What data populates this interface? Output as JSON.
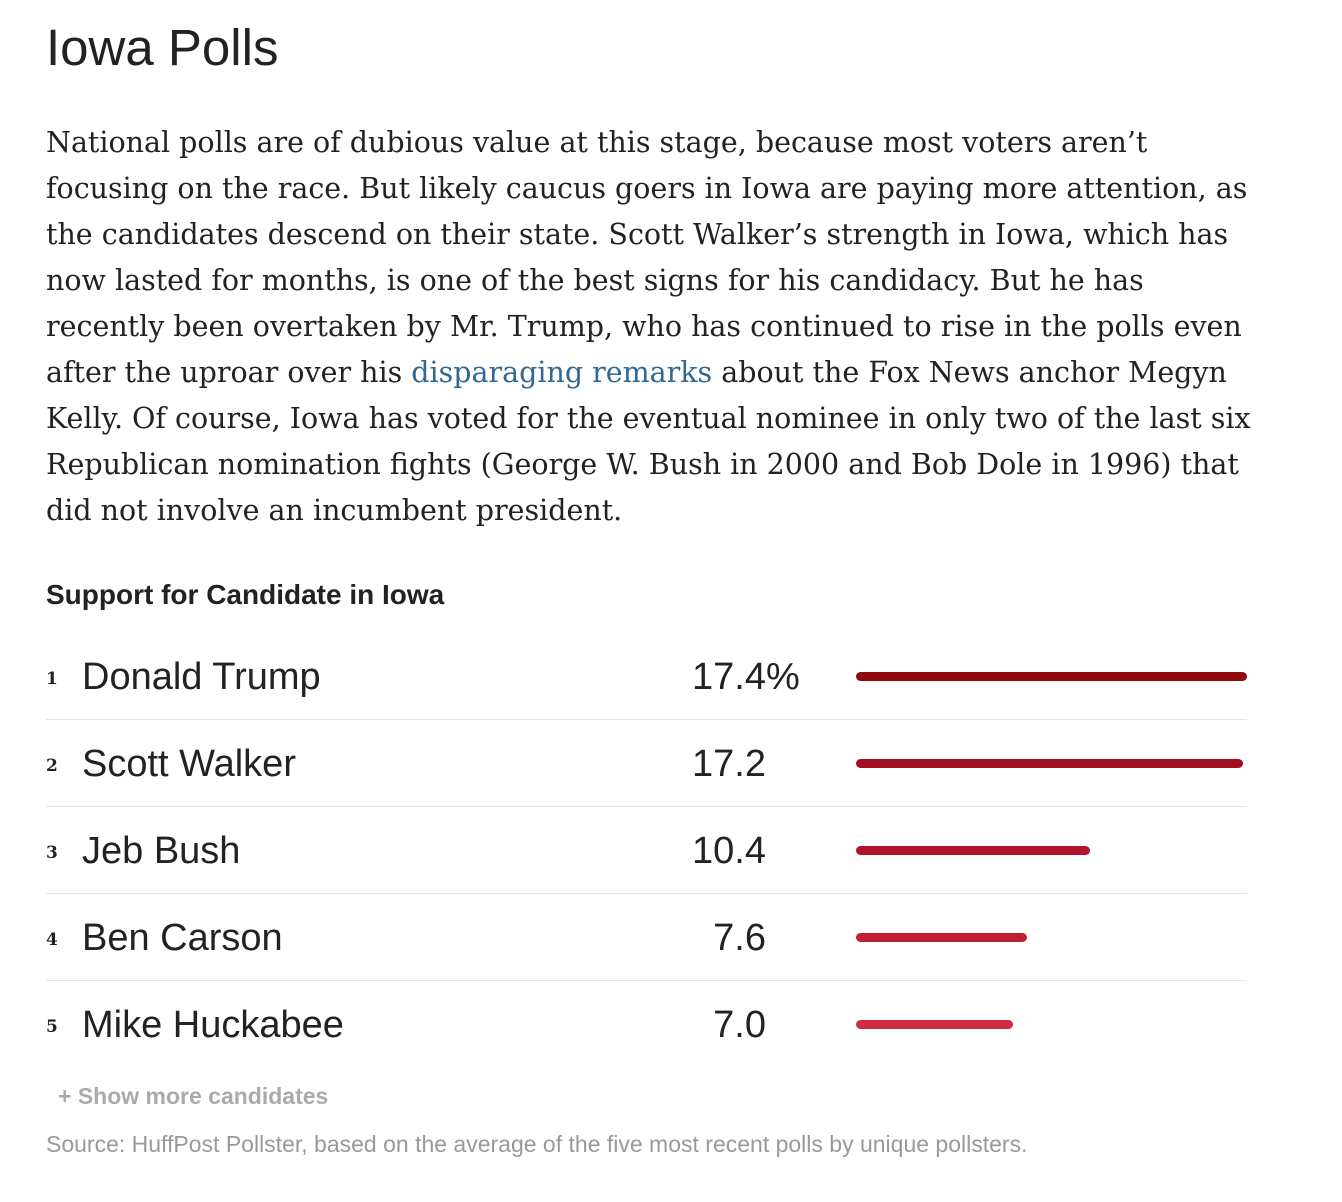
{
  "title": "Iowa Polls",
  "article": {
    "before_link": "National polls are of dubious value at this stage, because most voters aren’t focusing on the race. But likely caucus goers in Iowa are paying more attention, as the candidates descend on their state. Scott Walker’s strength in Iowa, which has now lasted for months, is one of the best signs for his candidacy. But he has recently been overtaken by Mr. Trump, who has continued to rise in the polls even after the uproar over his ",
    "link_text": "disparaging remarks",
    "after_link": " about the Fox News anchor Megyn Kelly. Of course, Iowa has voted for the eventual nominee in only two of the last six Republican nomination fights (George W. Bush in 2000 and Bob Dole in 1996) that did not involve an incumbent president."
  },
  "chart_data": {
    "type": "bar",
    "title": "Support for Candidate in Iowa",
    "ranks": [
      "1",
      "2",
      "3",
      "4",
      "5"
    ],
    "categories": [
      "Donald Trump",
      "Scott Walker",
      "Jeb Bush",
      "Ben Carson",
      "Mike Huckabee"
    ],
    "values": [
      17.4,
      17.2,
      10.4,
      7.6,
      7.0
    ],
    "value_labels": [
      "17.4",
      "17.2",
      "10.4",
      "7.6",
      "7.0"
    ],
    "first_value_suffix": "%",
    "bar_colors": [
      "#8f0a0e",
      "#a10e1f",
      "#b2152a",
      "#c21f33",
      "#cd2e3f"
    ],
    "xlim": [
      0,
      17.4
    ],
    "orientation": "horizontal",
    "grid": false,
    "legend": "none"
  },
  "show_more_label": "+ Show more candidates",
  "source": "Source: HuffPost Pollster, based on the average of the five most recent polls by unique pollsters."
}
